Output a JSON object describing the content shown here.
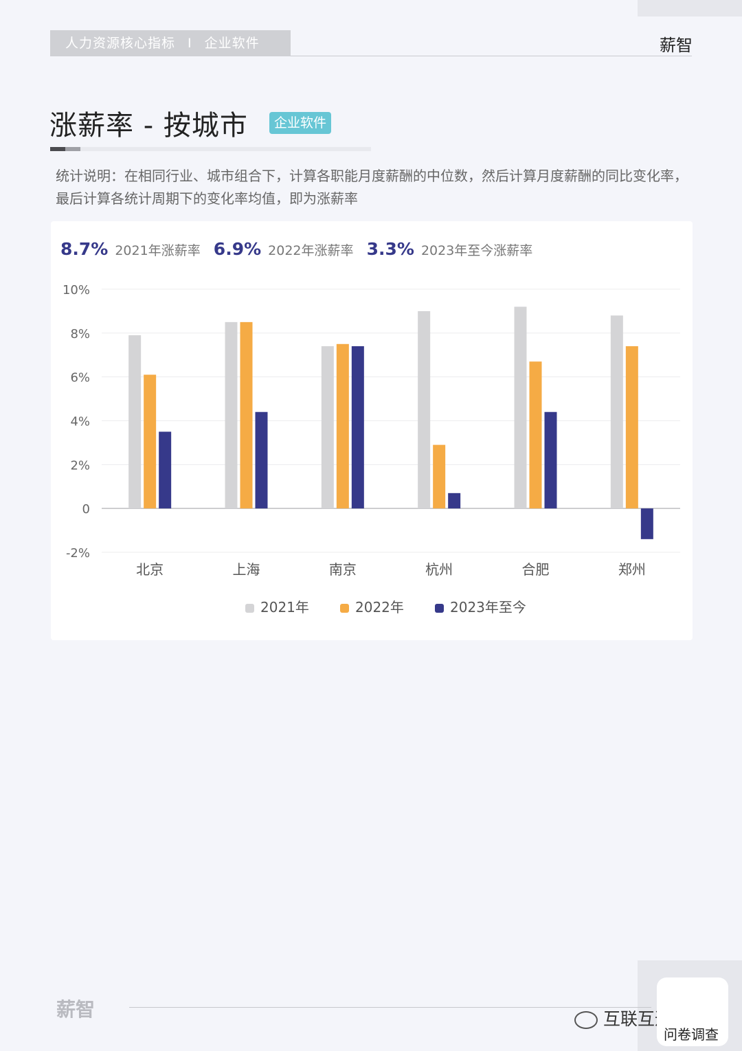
{
  "header": {
    "section": "人力资源核心指标",
    "separator": "I",
    "category": "企业软件",
    "brand": "薪智"
  },
  "page": {
    "title": "涨薪率 - 按城市",
    "badge": "企业软件"
  },
  "description": "统计说明：在相同行业、城市组合下，计算各职能月度薪酬的中位数，然后计算月度薪酬的同比变化率，最后计算各统计周期下的变化率均值，即为涨薪率",
  "stats": [
    {
      "value": "8.7%",
      "label": "2021年涨薪率"
    },
    {
      "value": "6.9%",
      "label": "2022年涨薪率"
    },
    {
      "value": "3.3%",
      "label": "2023年至今涨薪率"
    }
  ],
  "chart_data": {
    "type": "bar",
    "categories": [
      "北京",
      "上海",
      "南京",
      "杭州",
      "合肥",
      "郑州"
    ],
    "series": [
      {
        "name": "2021年",
        "color": "#d4d4d6",
        "values": [
          7.9,
          8.5,
          7.4,
          9.0,
          9.2,
          8.8
        ]
      },
      {
        "name": "2022年",
        "color": "#f5ab45",
        "values": [
          6.1,
          8.5,
          7.5,
          2.9,
          6.7,
          7.4
        ]
      },
      {
        "name": "2023年至今",
        "color": "#36398a",
        "values": [
          3.5,
          4.4,
          7.4,
          0.7,
          4.4,
          -1.4
        ]
      }
    ],
    "ylim": [
      -2,
      10
    ],
    "yticks": [
      {
        "value": 10,
        "label": "10%"
      },
      {
        "value": 8,
        "label": "8%"
      },
      {
        "value": 6,
        "label": "6%"
      },
      {
        "value": 4,
        "label": "4%"
      },
      {
        "value": 2,
        "label": "2%"
      },
      {
        "value": 0,
        "label": "0"
      },
      {
        "value": -2,
        "label": "-2%"
      }
    ],
    "grid": true,
    "legend_position": "bottom-center"
  },
  "footer": {
    "logo": "薪智",
    "wechat": "互联互通社区",
    "survey": "问卷调查"
  }
}
